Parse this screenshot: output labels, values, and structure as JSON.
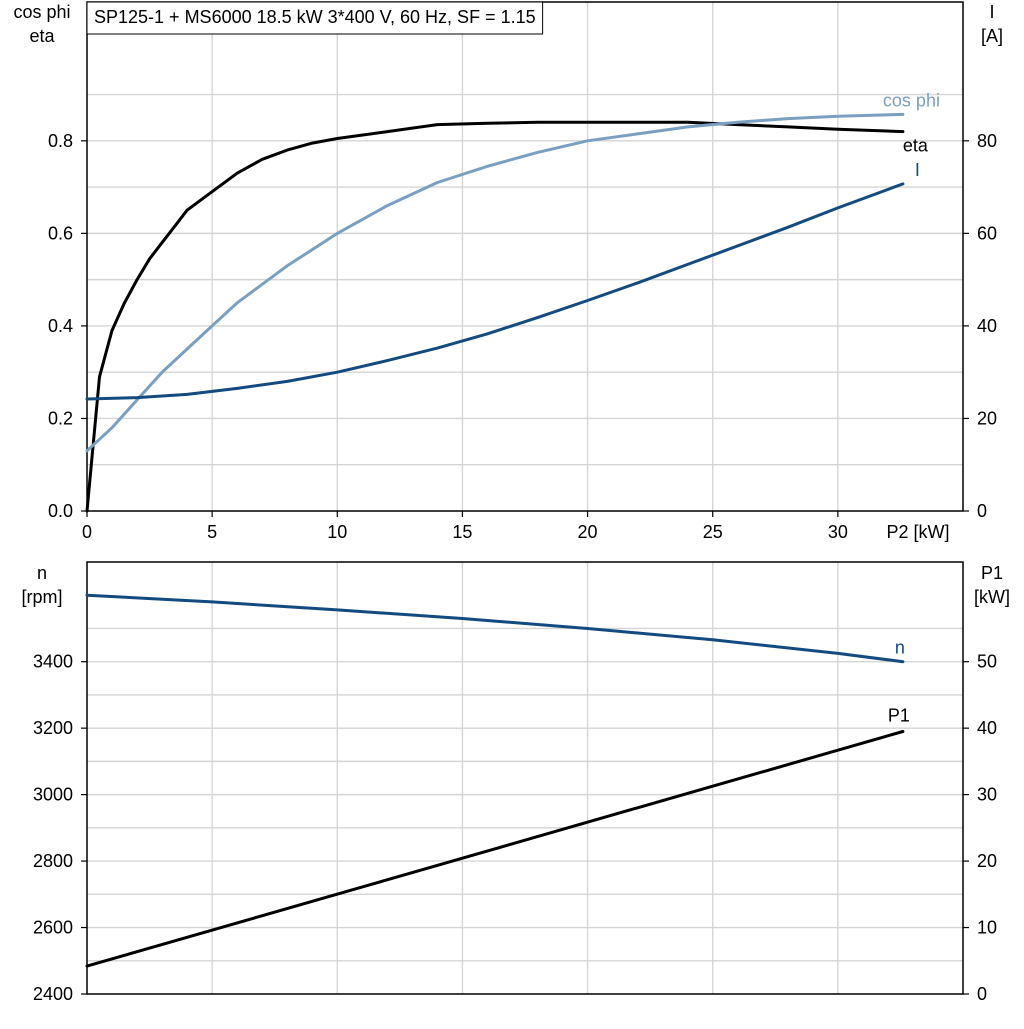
{
  "colors": {
    "eta": "#000000",
    "cos_phi": "#7a9fc0",
    "current": "#134a7f",
    "speed": "#134a7f",
    "p1": "#000000",
    "grid": "#d5d5d5"
  },
  "chart_data": [
    {
      "type": "line",
      "title": "SP125-1 + MS6000   18.5 kW   3*400 V, 60 Hz, SF = 1.15",
      "xlabel": "P2 [kW]",
      "ylabel_left": [
        "cos phi",
        "eta"
      ],
      "ylabel_right": [
        "I",
        "[A]"
      ],
      "xlim": [
        0,
        35
      ],
      "ylim_left": [
        0,
        1.1
      ],
      "ylim_right": [
        0,
        110
      ],
      "xticks": [
        "0",
        "5",
        "10",
        "15",
        "20",
        "25",
        "30"
      ],
      "yticks_left": [
        "0.0",
        "0.2",
        "0.4",
        "0.6",
        "0.8"
      ],
      "yticks_right": [
        "0",
        "20",
        "40",
        "60",
        "80"
      ],
      "grid": true,
      "series": [
        {
          "name": "eta",
          "axis": "left",
          "color": "#000000",
          "x": [
            0,
            0.5,
            1,
            1.5,
            2,
            2.5,
            3,
            3.5,
            4,
            5,
            6,
            7,
            8,
            9,
            10,
            12,
            14,
            16,
            18,
            20,
            22,
            24,
            26,
            28,
            30,
            32.6
          ],
          "y": [
            0,
            0.29,
            0.39,
            0.45,
            0.5,
            0.545,
            0.58,
            0.615,
            0.65,
            0.69,
            0.73,
            0.76,
            0.78,
            0.795,
            0.805,
            0.82,
            0.835,
            0.838,
            0.84,
            0.84,
            0.84,
            0.84,
            0.835,
            0.83,
            0.825,
            0.82
          ]
        },
        {
          "name": "cos phi",
          "axis": "left",
          "color": "#7a9fc0",
          "x": [
            0,
            1,
            2,
            3,
            4,
            5,
            6,
            7,
            8,
            9,
            10,
            12,
            14,
            16,
            18,
            20,
            22,
            24,
            26,
            28,
            30,
            32.6
          ],
          "y": [
            0.13,
            0.18,
            0.24,
            0.3,
            0.35,
            0.4,
            0.45,
            0.49,
            0.53,
            0.565,
            0.6,
            0.66,
            0.71,
            0.745,
            0.775,
            0.8,
            0.815,
            0.83,
            0.84,
            0.848,
            0.853,
            0.857
          ]
        },
        {
          "name": "I",
          "axis": "right",
          "color": "#134a7f",
          "x": [
            0,
            2,
            4,
            6,
            8,
            10,
            12,
            14,
            16,
            18,
            20,
            22,
            24,
            26,
            28,
            30,
            32.6
          ],
          "y": [
            24.2,
            24.5,
            25.2,
            26.5,
            28,
            30,
            32.5,
            35.2,
            38.3,
            41.8,
            45.5,
            49.3,
            53.3,
            57.3,
            61.3,
            65.5,
            70.7
          ]
        }
      ],
      "annotations": [
        {
          "text": "cos phi",
          "series": "cos phi",
          "x": 32.6,
          "y": 0.857
        },
        {
          "text": "eta",
          "series": "eta",
          "x": 32.6,
          "y": 0.82
        },
        {
          "text": "I",
          "series": "I",
          "x": 32.6,
          "y": 70.7
        }
      ]
    },
    {
      "type": "line",
      "xlabel": "",
      "ylabel_left": [
        "n",
        "[rpm]"
      ],
      "ylabel_right": [
        "P1",
        "[kW]"
      ],
      "xlim": [
        0,
        35
      ],
      "ylim_left": [
        2400,
        3700
      ],
      "ylim_right": [
        0,
        65
      ],
      "yticks_left": [
        "2400",
        "2600",
        "2800",
        "3000",
        "3200",
        "3400"
      ],
      "yticks_right": [
        "0",
        "10",
        "20",
        "30",
        "40",
        "50"
      ],
      "grid": true,
      "series": [
        {
          "name": "n",
          "axis": "left",
          "color": "#134a7f",
          "x": [
            0,
            5,
            10,
            15,
            20,
            25,
            30,
            32.6
          ],
          "y": [
            3600,
            3580,
            3556,
            3530,
            3500,
            3466,
            3425,
            3400
          ]
        },
        {
          "name": "P1",
          "axis": "right",
          "color": "#000000",
          "x": [
            0,
            32.6
          ],
          "y": [
            4.2,
            39.5
          ]
        }
      ],
      "annotations": [
        {
          "text": "n",
          "series": "n",
          "x": 32.6,
          "y": 3400
        },
        {
          "text": "P1",
          "series": "P1",
          "x": 32.6,
          "y": 39.5
        }
      ]
    }
  ]
}
